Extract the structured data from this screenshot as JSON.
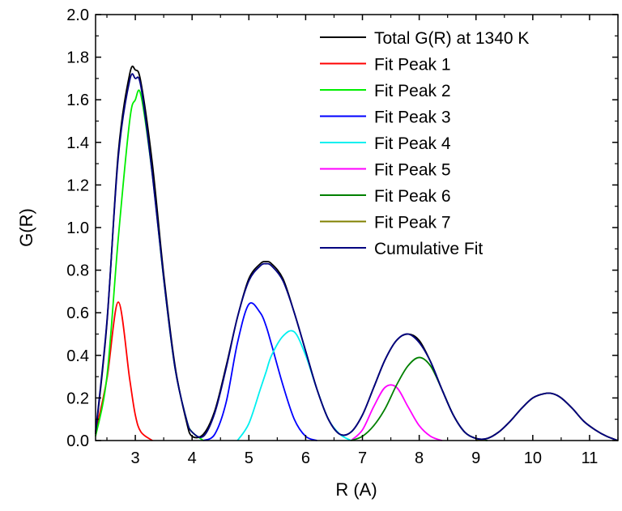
{
  "chart_data": {
    "type": "line",
    "title": "",
    "xlabel": "R (A)",
    "ylabel": "G(R)",
    "xlim": [
      2.3,
      11.5
    ],
    "ylim": [
      0.0,
      2.0
    ],
    "xticks": [
      3,
      4,
      5,
      6,
      7,
      8,
      9,
      10,
      11
    ],
    "yticks": [
      "0.0",
      "0.2",
      "0.4",
      "0.6",
      "0.8",
      "1.0",
      "1.2",
      "1.4",
      "1.6",
      "1.8",
      "2.0"
    ],
    "legend_position": "top-right",
    "grid": false,
    "sample_x": [
      2.3,
      2.5,
      2.7,
      2.9,
      3.0,
      3.1,
      3.3,
      3.5,
      3.7,
      3.9,
      4.0,
      4.2,
      4.4,
      4.6,
      4.8,
      5.0,
      5.2,
      5.3,
      5.4,
      5.6,
      5.8,
      6.0,
      6.2,
      6.4,
      6.6,
      6.8,
      7.0,
      7.2,
      7.4,
      7.6,
      7.8,
      8.0,
      8.2,
      8.4,
      8.6,
      8.8,
      9.0,
      9.2,
      9.4,
      9.6,
      9.8,
      10.0,
      10.2,
      10.35,
      10.5,
      10.7,
      10.9,
      11.1,
      11.3,
      11.5
    ],
    "series": [
      {
        "name": "Total G(R) at 1340 K",
        "color": "#000000",
        "values": [
          0.03,
          0.55,
          1.35,
          1.72,
          1.74,
          1.68,
          1.3,
          0.78,
          0.35,
          0.09,
          0.02,
          0.03,
          0.14,
          0.35,
          0.58,
          0.76,
          0.83,
          0.84,
          0.83,
          0.76,
          0.6,
          0.42,
          0.24,
          0.1,
          0.03,
          0.04,
          0.12,
          0.25,
          0.38,
          0.47,
          0.5,
          0.47,
          0.37,
          0.24,
          0.12,
          0.04,
          0.01,
          0.01,
          0.04,
          0.09,
          0.15,
          0.2,
          0.22,
          0.22,
          0.2,
          0.15,
          0.09,
          0.05,
          0.02,
          0.0
        ]
      },
      {
        "name": "Fit Peak 1",
        "color": "#ff0000",
        "values": [
          0.04,
          0.29,
          0.65,
          0.29,
          0.12,
          0.04,
          0.0,
          0,
          0,
          0,
          0,
          0,
          0,
          0,
          0,
          0,
          0,
          0,
          0,
          0,
          0,
          0,
          0,
          0,
          0,
          0,
          0,
          0,
          0,
          0,
          0,
          0,
          0,
          0,
          0,
          0,
          0,
          0,
          0,
          0,
          0,
          0,
          0,
          0,
          0,
          0,
          0,
          0,
          0,
          0
        ]
      },
      {
        "name": "Fit Peak 2",
        "color": "#00ee00",
        "values": [
          0.02,
          0.3,
          0.95,
          1.5,
          1.6,
          1.62,
          1.25,
          0.76,
          0.34,
          0.1,
          0.04,
          0.0,
          0,
          0,
          0,
          0,
          0,
          0,
          0,
          0,
          0,
          0,
          0,
          0,
          0,
          0,
          0,
          0,
          0,
          0,
          0,
          0,
          0,
          0,
          0,
          0,
          0,
          0,
          0,
          0,
          0,
          0,
          0,
          0,
          0,
          0,
          0,
          0,
          0,
          0
        ]
      },
      {
        "name": "Fit Peak 3",
        "color": "#0000ff",
        "values": [
          0,
          0,
          0,
          0,
          0,
          0,
          0,
          0,
          0,
          0,
          0,
          0.0,
          0.03,
          0.18,
          0.46,
          0.64,
          0.6,
          0.54,
          0.45,
          0.26,
          0.1,
          0.02,
          0.0,
          0,
          0,
          0,
          0,
          0,
          0,
          0,
          0,
          0,
          0,
          0,
          0,
          0,
          0,
          0,
          0,
          0,
          0,
          0,
          0,
          0,
          0,
          0,
          0,
          0,
          0,
          0
        ]
      },
      {
        "name": "Fit Peak 4",
        "color": "#00f0f0",
        "values": [
          0,
          0,
          0,
          0,
          0,
          0,
          0,
          0,
          0,
          0,
          0,
          0,
          0,
          0,
          0.0,
          0.08,
          0.24,
          0.32,
          0.4,
          0.49,
          0.51,
          0.4,
          0.24,
          0.1,
          0.03,
          0.0,
          0,
          0,
          0,
          0,
          0,
          0,
          0,
          0,
          0,
          0,
          0,
          0,
          0,
          0,
          0,
          0,
          0,
          0,
          0,
          0,
          0,
          0,
          0,
          0
        ]
      },
      {
        "name": "Fit Peak 5",
        "color": "#ff00ff",
        "values": [
          0,
          0,
          0,
          0,
          0,
          0,
          0,
          0,
          0,
          0,
          0,
          0,
          0,
          0,
          0,
          0,
          0,
          0,
          0,
          0,
          0,
          0,
          0,
          0,
          0,
          0.0,
          0.05,
          0.16,
          0.25,
          0.25,
          0.16,
          0.07,
          0.02,
          0.0,
          0,
          0,
          0,
          0,
          0,
          0,
          0,
          0,
          0,
          0,
          0,
          0,
          0,
          0,
          0,
          0
        ]
      },
      {
        "name": "Fit Peak 6",
        "color": "#008000",
        "values": [
          0,
          0,
          0,
          0,
          0,
          0,
          0,
          0,
          0,
          0,
          0,
          0,
          0,
          0,
          0,
          0,
          0,
          0,
          0,
          0,
          0,
          0,
          0,
          0,
          0,
          0.0,
          0.02,
          0.07,
          0.15,
          0.26,
          0.35,
          0.39,
          0.35,
          0.24,
          0.12,
          0.04,
          0.01,
          0.0,
          0,
          0,
          0,
          0,
          0,
          0,
          0,
          0,
          0,
          0,
          0,
          0
        ]
      },
      {
        "name": "Fit Peak 7",
        "color": "#808000",
        "values": [
          0,
          0,
          0,
          0,
          0,
          0,
          0,
          0,
          0,
          0,
          0,
          0,
          0,
          0,
          0,
          0,
          0,
          0,
          0,
          0,
          0,
          0,
          0,
          0,
          0,
          0,
          0,
          0,
          0,
          0,
          0,
          0,
          0,
          0,
          0,
          0,
          0.0,
          0.01,
          0.04,
          0.09,
          0.15,
          0.2,
          0.22,
          0.22,
          0.2,
          0.15,
          0.09,
          0.05,
          0.02,
          0.0
        ]
      },
      {
        "name": "Cumulative Fit",
        "color": "#000080",
        "values": [
          0.04,
          0.56,
          1.33,
          1.69,
          1.7,
          1.66,
          1.25,
          0.76,
          0.34,
          0.1,
          0.04,
          0.02,
          0.13,
          0.34,
          0.58,
          0.75,
          0.82,
          0.83,
          0.82,
          0.75,
          0.6,
          0.42,
          0.24,
          0.1,
          0.03,
          0.04,
          0.12,
          0.25,
          0.38,
          0.47,
          0.5,
          0.46,
          0.37,
          0.24,
          0.12,
          0.04,
          0.01,
          0.01,
          0.04,
          0.09,
          0.15,
          0.2,
          0.22,
          0.22,
          0.2,
          0.15,
          0.09,
          0.05,
          0.02,
          0.0
        ]
      }
    ]
  }
}
